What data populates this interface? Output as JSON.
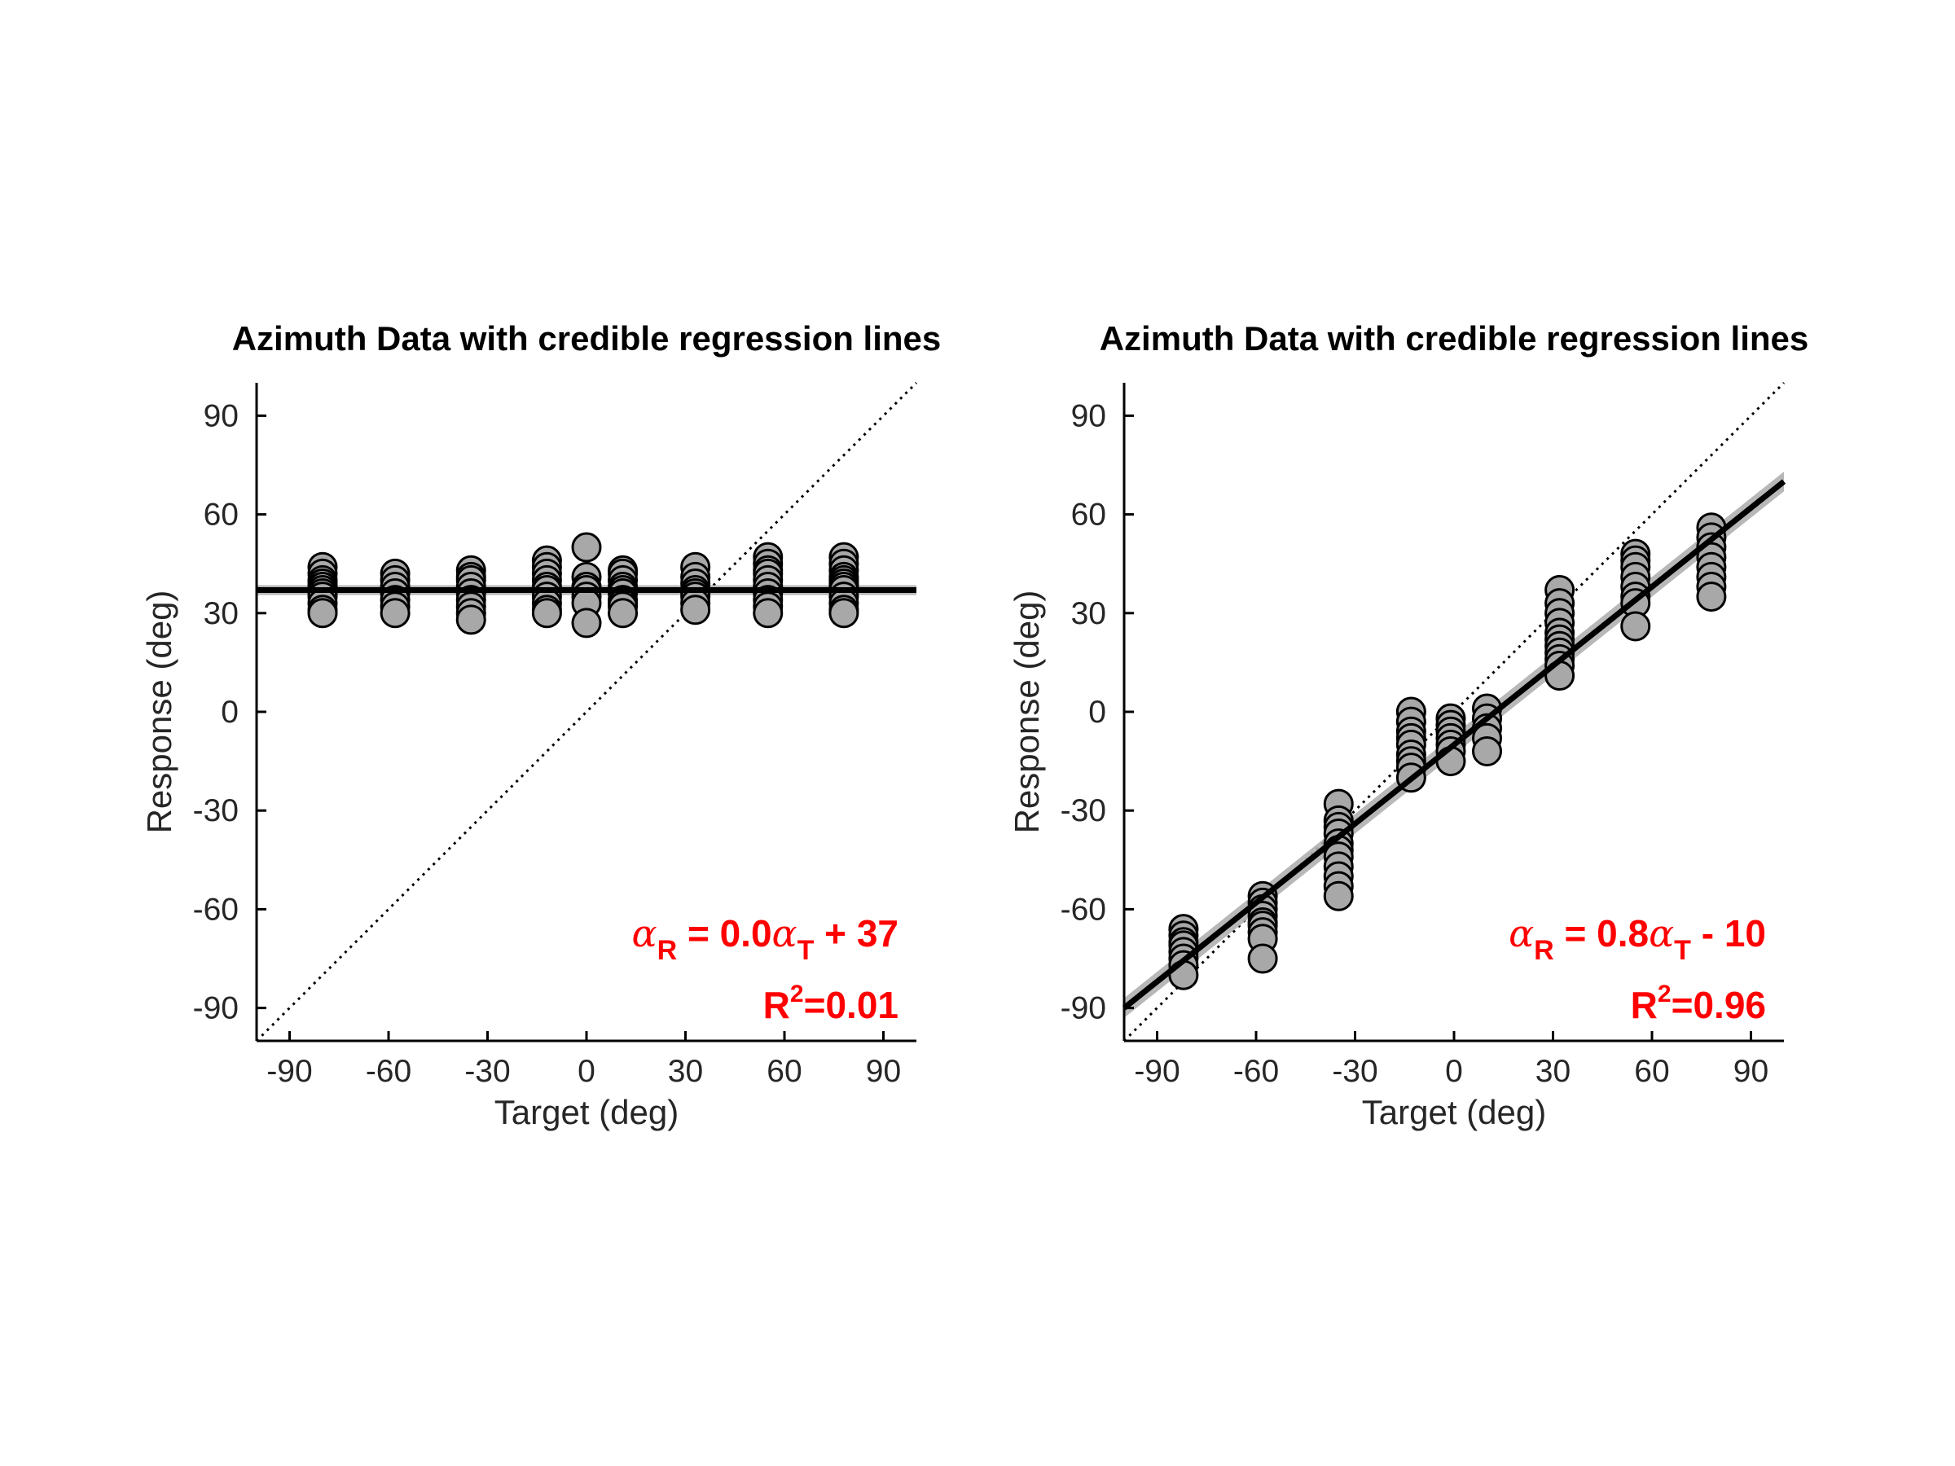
{
  "chart_data": [
    {
      "type": "scatter",
      "title": "Azimuth Data with credible regression lines",
      "xlabel": "Target (deg)",
      "ylabel": "Response (deg)",
      "xlim": [
        -100,
        100
      ],
      "ylim": [
        -100,
        100
      ],
      "xticks": [
        "-90",
        "-60",
        "-30",
        "0",
        "30",
        "60",
        "90"
      ],
      "yticks": [
        "90",
        "60",
        "30",
        "0",
        "-30",
        "-60",
        "-90"
      ],
      "grid": false,
      "identity_line": true,
      "regression": {
        "slope": 0.0,
        "intercept": 37,
        "band": 1.5
      },
      "annotation": {
        "equation": {
          "sym": "α",
          "sub_r": "R",
          "eq": " = 0.0",
          "sub_t": "T",
          "rest": " + 37"
        },
        "r2": {
          "base": "R",
          "sup": "2",
          "value": "=0.01"
        }
      },
      "series": [
        {
          "x": [
            -80,
            -80,
            -80,
            -80,
            -80,
            -80,
            -80,
            -80,
            -80,
            -80,
            -80
          ],
          "y": [
            44,
            42,
            40,
            39,
            38,
            37,
            36,
            35,
            33,
            31,
            30
          ]
        },
        {
          "x": [
            -58,
            -58,
            -58,
            -58,
            -58,
            -58,
            -58
          ],
          "y": [
            42,
            40,
            38,
            36,
            34,
            32,
            30
          ]
        },
        {
          "x": [
            -35,
            -35,
            -35,
            -35,
            -35,
            -35,
            -35,
            -35,
            -35
          ],
          "y": [
            43,
            41,
            40,
            38,
            36,
            34,
            32,
            30,
            28
          ]
        },
        {
          "x": [
            -12,
            -12,
            -12,
            -12,
            -12,
            -12,
            -12,
            -12,
            -12,
            -12
          ],
          "y": [
            46,
            44,
            42,
            40,
            38,
            37,
            35,
            33,
            31,
            30
          ]
        },
        {
          "x": [
            0,
            0,
            0,
            0,
            0,
            0,
            0
          ],
          "y": [
            50,
            41,
            38,
            37,
            35,
            33,
            27
          ]
        },
        {
          "x": [
            11,
            11,
            11,
            11,
            11,
            11,
            11,
            11,
            11,
            11
          ],
          "y": [
            43,
            42,
            40,
            38,
            37,
            36,
            34,
            33,
            32,
            30
          ]
        },
        {
          "x": [
            33,
            33,
            33,
            33,
            33,
            33,
            33,
            33
          ],
          "y": [
            44,
            41,
            39,
            37,
            36,
            35,
            33,
            31
          ]
        },
        {
          "x": [
            55,
            55,
            55,
            55,
            55,
            55,
            55,
            55,
            55,
            55
          ],
          "y": [
            47,
            45,
            43,
            42,
            40,
            38,
            36,
            34,
            32,
            30
          ]
        },
        {
          "x": [
            78,
            78,
            78,
            78,
            78,
            78,
            78,
            78,
            78,
            78,
            78,
            78
          ],
          "y": [
            47,
            45,
            43,
            41,
            40,
            39,
            38,
            37,
            35,
            33,
            31,
            30
          ]
        }
      ]
    },
    {
      "type": "scatter",
      "title": "Azimuth Data with credible regression lines",
      "xlabel": "Target (deg)",
      "ylabel": "Response (deg)",
      "xlim": [
        -100,
        100
      ],
      "ylim": [
        -100,
        100
      ],
      "xticks": [
        "-90",
        "-60",
        "-30",
        "0",
        "30",
        "60",
        "90"
      ],
      "yticks": [
        "90",
        "60",
        "30",
        "0",
        "-30",
        "-60",
        "-90"
      ],
      "grid": false,
      "identity_line": true,
      "regression": {
        "slope": 0.8,
        "intercept": -10,
        "band": 3
      },
      "annotation": {
        "equation": {
          "sym": "α",
          "sub_r": "R",
          "eq": " = 0.8",
          "sub_t": "T",
          "rest": " - 10"
        },
        "r2": {
          "base": "R",
          "sup": "2",
          "value": "=0.96"
        }
      },
      "series": [
        {
          "x": [
            -82,
            -82,
            -82,
            -82,
            -82,
            -82,
            -82,
            -82
          ],
          "y": [
            -66,
            -68,
            -70,
            -71,
            -73,
            -75,
            -77,
            -80
          ]
        },
        {
          "x": [
            -58,
            -58,
            -58,
            -58,
            -58,
            -58,
            -58,
            -58,
            -58
          ],
          "y": [
            -56,
            -58,
            -60,
            -62,
            -64,
            -65,
            -67,
            -69,
            -75
          ]
        },
        {
          "x": [
            -35,
            -35,
            -35,
            -35,
            -35,
            -35,
            -35,
            -35,
            -35,
            -35,
            -35
          ],
          "y": [
            -28,
            -33,
            -35,
            -37,
            -40,
            -42,
            -44,
            -47,
            -50,
            -53,
            -56
          ]
        },
        {
          "x": [
            -13,
            -13,
            -13,
            -13,
            -13,
            -13,
            -13,
            -13,
            -13
          ],
          "y": [
            0,
            -3,
            -6,
            -8,
            -10,
            -13,
            -15,
            -17,
            -20
          ]
        },
        {
          "x": [
            -1,
            -1,
            -1,
            -1,
            -1,
            -1,
            -1
          ],
          "y": [
            -2,
            -4,
            -6,
            -8,
            -10,
            -12,
            -15
          ]
        },
        {
          "x": [
            10,
            10,
            10,
            10,
            10
          ],
          "y": [
            1,
            -2,
            -5,
            -8,
            -12
          ]
        },
        {
          "x": [
            32,
            32,
            32,
            32,
            32,
            32,
            32,
            32,
            32,
            32,
            32
          ],
          "y": [
            37,
            33,
            30,
            27,
            24,
            22,
            20,
            18,
            16,
            14,
            11
          ]
        },
        {
          "x": [
            55,
            55,
            55,
            55,
            55,
            55,
            55,
            55
          ],
          "y": [
            48,
            46,
            44,
            41,
            38,
            35,
            33,
            26
          ]
        },
        {
          "x": [
            78,
            78,
            78,
            78,
            78,
            78,
            78,
            78
          ],
          "y": [
            56,
            53,
            50,
            47,
            44,
            41,
            38,
            35
          ]
        }
      ]
    }
  ]
}
